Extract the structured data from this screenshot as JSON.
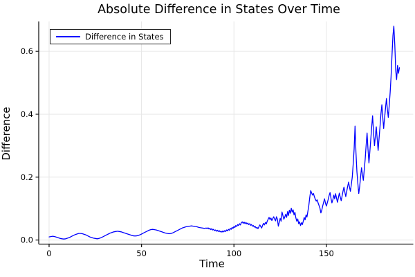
{
  "title": "Absolute Difference in States Over Time",
  "legend": {
    "position": "top-left",
    "entry_label": "Difference in States"
  },
  "colors": {
    "line": "#0000ff",
    "grid": "#e6e6e6",
    "spine": "#1a1a1a",
    "text": "#000000",
    "background": "#ffffff",
    "legend_border": "#222222"
  },
  "chart_data": {
    "type": "line",
    "title": "Absolute Difference in States Over Time",
    "xlabel": "Time",
    "ylabel": "Difference",
    "xlim": [
      -5.6,
      197
    ],
    "ylim": [
      -0.013,
      0.695
    ],
    "grid": true,
    "legend_position": "top-left",
    "x_ticks": [
      {
        "value": 0,
        "label": "0"
      },
      {
        "value": 50,
        "label": "50"
      },
      {
        "value": 100,
        "label": "100"
      },
      {
        "value": 150,
        "label": "150"
      }
    ],
    "y_ticks": [
      {
        "value": 0.0,
        "label": "0.0"
      },
      {
        "value": 0.2,
        "label": "0.2"
      },
      {
        "value": 0.4,
        "label": "0.4"
      },
      {
        "value": 0.6,
        "label": "0.6"
      }
    ],
    "series": [
      {
        "name": "Difference in States",
        "color": "#0000ff",
        "points": [
          [
            0,
            0.01
          ],
          [
            1,
            0.011
          ],
          [
            2,
            0.012
          ],
          [
            3,
            0.011
          ],
          [
            4,
            0.009
          ],
          [
            5,
            0.007
          ],
          [
            6,
            0.005
          ],
          [
            7,
            0.004
          ],
          [
            8,
            0.003
          ],
          [
            9,
            0.004
          ],
          [
            10,
            0.006
          ],
          [
            11,
            0.008
          ],
          [
            12,
            0.011
          ],
          [
            13,
            0.014
          ],
          [
            14,
            0.017
          ],
          [
            15,
            0.019
          ],
          [
            16,
            0.021
          ],
          [
            17,
            0.021
          ],
          [
            18,
            0.02
          ],
          [
            19,
            0.018
          ],
          [
            20,
            0.016
          ],
          [
            21,
            0.013
          ],
          [
            22,
            0.01
          ],
          [
            23,
            0.008
          ],
          [
            24,
            0.006
          ],
          [
            25,
            0.005
          ],
          [
            26,
            0.004
          ],
          [
            27,
            0.005
          ],
          [
            28,
            0.007
          ],
          [
            29,
            0.01
          ],
          [
            30,
            0.013
          ],
          [
            31,
            0.016
          ],
          [
            32,
            0.019
          ],
          [
            33,
            0.022
          ],
          [
            34,
            0.024
          ],
          [
            35,
            0.026
          ],
          [
            36,
            0.027
          ],
          [
            37,
            0.028
          ],
          [
            38,
            0.027
          ],
          [
            39,
            0.026
          ],
          [
            40,
            0.024
          ],
          [
            41,
            0.022
          ],
          [
            42,
            0.02
          ],
          [
            43,
            0.018
          ],
          [
            44,
            0.016
          ],
          [
            45,
            0.014
          ],
          [
            46,
            0.013
          ],
          [
            47,
            0.013
          ],
          [
            48,
            0.014
          ],
          [
            49,
            0.016
          ],
          [
            50,
            0.019
          ],
          [
            51,
            0.022
          ],
          [
            52,
            0.025
          ],
          [
            53,
            0.028
          ],
          [
            54,
            0.031
          ],
          [
            55,
            0.033
          ],
          [
            56,
            0.034
          ],
          [
            57,
            0.033
          ],
          [
            58,
            0.032
          ],
          [
            59,
            0.03
          ],
          [
            60,
            0.028
          ],
          [
            61,
            0.026
          ],
          [
            62,
            0.024
          ],
          [
            63,
            0.022
          ],
          [
            64,
            0.021
          ],
          [
            65,
            0.02
          ],
          [
            66,
            0.021
          ],
          [
            67,
            0.023
          ],
          [
            68,
            0.026
          ],
          [
            69,
            0.029
          ],
          [
            70,
            0.032
          ],
          [
            71,
            0.035
          ],
          [
            72,
            0.038
          ],
          [
            73,
            0.04
          ],
          [
            74,
            0.042
          ],
          [
            75,
            0.043
          ],
          [
            76,
            0.044
          ],
          [
            77,
            0.045
          ],
          [
            78,
            0.044
          ],
          [
            79,
            0.043
          ],
          [
            80,
            0.042
          ],
          [
            81,
            0.04
          ],
          [
            82,
            0.039
          ],
          [
            83,
            0.038
          ],
          [
            84,
            0.037
          ],
          [
            85,
            0.038
          ],
          [
            85.5,
            0.036
          ],
          [
            86,
            0.039
          ],
          [
            86.5,
            0.035
          ],
          [
            87,
            0.037
          ],
          [
            87.5,
            0.033
          ],
          [
            88,
            0.036
          ],
          [
            88.5,
            0.032
          ],
          [
            89,
            0.034
          ],
          [
            89.5,
            0.03
          ],
          [
            90,
            0.032
          ],
          [
            90.5,
            0.028
          ],
          [
            91,
            0.031
          ],
          [
            91.5,
            0.027
          ],
          [
            92,
            0.03
          ],
          [
            92.5,
            0.026
          ],
          [
            93,
            0.028
          ],
          [
            93.5,
            0.025
          ],
          [
            94,
            0.029
          ],
          [
            94.5,
            0.026
          ],
          [
            95,
            0.03
          ],
          [
            95.5,
            0.027
          ],
          [
            96,
            0.032
          ],
          [
            96.5,
            0.029
          ],
          [
            97,
            0.034
          ],
          [
            97.5,
            0.031
          ],
          [
            98,
            0.037
          ],
          [
            98.5,
            0.034
          ],
          [
            99,
            0.04
          ],
          [
            99.5,
            0.037
          ],
          [
            100,
            0.043
          ],
          [
            100.5,
            0.04
          ],
          [
            101,
            0.046
          ],
          [
            101.5,
            0.043
          ],
          [
            102,
            0.049
          ],
          [
            102.5,
            0.046
          ],
          [
            103,
            0.052
          ],
          [
            103.5,
            0.048
          ],
          [
            104,
            0.055
          ],
          [
            104.5,
            0.058
          ],
          [
            105,
            0.053
          ],
          [
            105.5,
            0.057
          ],
          [
            106,
            0.052
          ],
          [
            106.5,
            0.056
          ],
          [
            107,
            0.051
          ],
          [
            107.5,
            0.054
          ],
          [
            108,
            0.049
          ],
          [
            108.5,
            0.052
          ],
          [
            109,
            0.047
          ],
          [
            109.5,
            0.049
          ],
          [
            110,
            0.044
          ],
          [
            110.5,
            0.046
          ],
          [
            111,
            0.041
          ],
          [
            111.5,
            0.043
          ],
          [
            112,
            0.038
          ],
          [
            112.5,
            0.04
          ],
          [
            113,
            0.036
          ],
          [
            113.5,
            0.042
          ],
          [
            114,
            0.048
          ],
          [
            114.5,
            0.043
          ],
          [
            115,
            0.038
          ],
          [
            115.5,
            0.047
          ],
          [
            116,
            0.053
          ],
          [
            116.5,
            0.048
          ],
          [
            117,
            0.056
          ],
          [
            117.5,
            0.051
          ],
          [
            118,
            0.06
          ],
          [
            118.5,
            0.066
          ],
          [
            119,
            0.072
          ],
          [
            119.5,
            0.065
          ],
          [
            120,
            0.07
          ],
          [
            120.5,
            0.062
          ],
          [
            121,
            0.068
          ],
          [
            121.5,
            0.074
          ],
          [
            122,
            0.067
          ],
          [
            122.5,
            0.061
          ],
          [
            123,
            0.074
          ],
          [
            123.5,
            0.066
          ],
          [
            124,
            0.044
          ],
          [
            124.5,
            0.056
          ],
          [
            125,
            0.069
          ],
          [
            125.5,
            0.06
          ],
          [
            126,
            0.089
          ],
          [
            126.5,
            0.077
          ],
          [
            127,
            0.066
          ],
          [
            127.5,
            0.073
          ],
          [
            128,
            0.082
          ],
          [
            128.5,
            0.072
          ],
          [
            129,
            0.09
          ],
          [
            129.5,
            0.078
          ],
          [
            130,
            0.095
          ],
          [
            130.5,
            0.085
          ],
          [
            131,
            0.101
          ],
          [
            131.5,
            0.089
          ],
          [
            132,
            0.096
          ],
          [
            132.5,
            0.08
          ],
          [
            133,
            0.088
          ],
          [
            133.5,
            0.07
          ],
          [
            134,
            0.06
          ],
          [
            134.5,
            0.067
          ],
          [
            135,
            0.052
          ],
          [
            135.5,
            0.058
          ],
          [
            136,
            0.046
          ],
          [
            136.5,
            0.055
          ],
          [
            137,
            0.049
          ],
          [
            137.5,
            0.06
          ],
          [
            138,
            0.072
          ],
          [
            138.5,
            0.064
          ],
          [
            139,
            0.08
          ],
          [
            139.5,
            0.073
          ],
          [
            140,
            0.092
          ],
          [
            140.5,
            0.11
          ],
          [
            141,
            0.135
          ],
          [
            141.5,
            0.157
          ],
          [
            142,
            0.15
          ],
          [
            142.5,
            0.143
          ],
          [
            143,
            0.148
          ],
          [
            143.5,
            0.138
          ],
          [
            144,
            0.13
          ],
          [
            144.5,
            0.124
          ],
          [
            145,
            0.128
          ],
          [
            145.5,
            0.118
          ],
          [
            146,
            0.11
          ],
          [
            146.5,
            0.102
          ],
          [
            147,
            0.086
          ],
          [
            147.5,
            0.095
          ],
          [
            148,
            0.108
          ],
          [
            148.5,
            0.12
          ],
          [
            149,
            0.131
          ],
          [
            149.5,
            0.118
          ],
          [
            150,
            0.108
          ],
          [
            150.5,
            0.118
          ],
          [
            151,
            0.13
          ],
          [
            151.5,
            0.142
          ],
          [
            152,
            0.151
          ],
          [
            152.5,
            0.132
          ],
          [
            153,
            0.118
          ],
          [
            153.5,
            0.128
          ],
          [
            154,
            0.143
          ],
          [
            154.5,
            0.131
          ],
          [
            155,
            0.147
          ],
          [
            155.5,
            0.133
          ],
          [
            156,
            0.12
          ],
          [
            156.5,
            0.135
          ],
          [
            157,
            0.149
          ],
          [
            157.5,
            0.137
          ],
          [
            158,
            0.125
          ],
          [
            158.5,
            0.14
          ],
          [
            159,
            0.155
          ],
          [
            159.5,
            0.168
          ],
          [
            160,
            0.152
          ],
          [
            160.5,
            0.138
          ],
          [
            161,
            0.155
          ],
          [
            161.5,
            0.17
          ],
          [
            162,
            0.184
          ],
          [
            162.5,
            0.168
          ],
          [
            163,
            0.155
          ],
          [
            163.5,
            0.178
          ],
          [
            164,
            0.2
          ],
          [
            164.5,
            0.24
          ],
          [
            165,
            0.29
          ],
          [
            165.5,
            0.362
          ],
          [
            166,
            0.28
          ],
          [
            166.5,
            0.218
          ],
          [
            167,
            0.182
          ],
          [
            167.5,
            0.148
          ],
          [
            168,
            0.17
          ],
          [
            168.5,
            0.2
          ],
          [
            169,
            0.23
          ],
          [
            169.5,
            0.208
          ],
          [
            170,
            0.19
          ],
          [
            170.5,
            0.225
          ],
          [
            171,
            0.258
          ],
          [
            171.5,
            0.3
          ],
          [
            172,
            0.34
          ],
          [
            172.5,
            0.29
          ],
          [
            173,
            0.245
          ],
          [
            173.5,
            0.28
          ],
          [
            174,
            0.318
          ],
          [
            174.5,
            0.36
          ],
          [
            175,
            0.395
          ],
          [
            175.5,
            0.345
          ],
          [
            176,
            0.3
          ],
          [
            176.5,
            0.33
          ],
          [
            177,
            0.36
          ],
          [
            177.5,
            0.32
          ],
          [
            178,
            0.285
          ],
          [
            178.5,
            0.325
          ],
          [
            179,
            0.36
          ],
          [
            179.5,
            0.4
          ],
          [
            180,
            0.43
          ],
          [
            180.5,
            0.39
          ],
          [
            181,
            0.355
          ],
          [
            181.5,
            0.39
          ],
          [
            182,
            0.42
          ],
          [
            182.5,
            0.45
          ],
          [
            183,
            0.415
          ],
          [
            183.5,
            0.39
          ],
          [
            184,
            0.43
          ],
          [
            184.5,
            0.47
          ],
          [
            185,
            0.52
          ],
          [
            185.5,
            0.59
          ],
          [
            186,
            0.65
          ],
          [
            186.5,
            0.68
          ],
          [
            187,
            0.62
          ],
          [
            187.5,
            0.54
          ],
          [
            188,
            0.51
          ],
          [
            188.5,
            0.555
          ],
          [
            189,
            0.53
          ],
          [
            189.5,
            0.548
          ]
        ]
      }
    ]
  }
}
